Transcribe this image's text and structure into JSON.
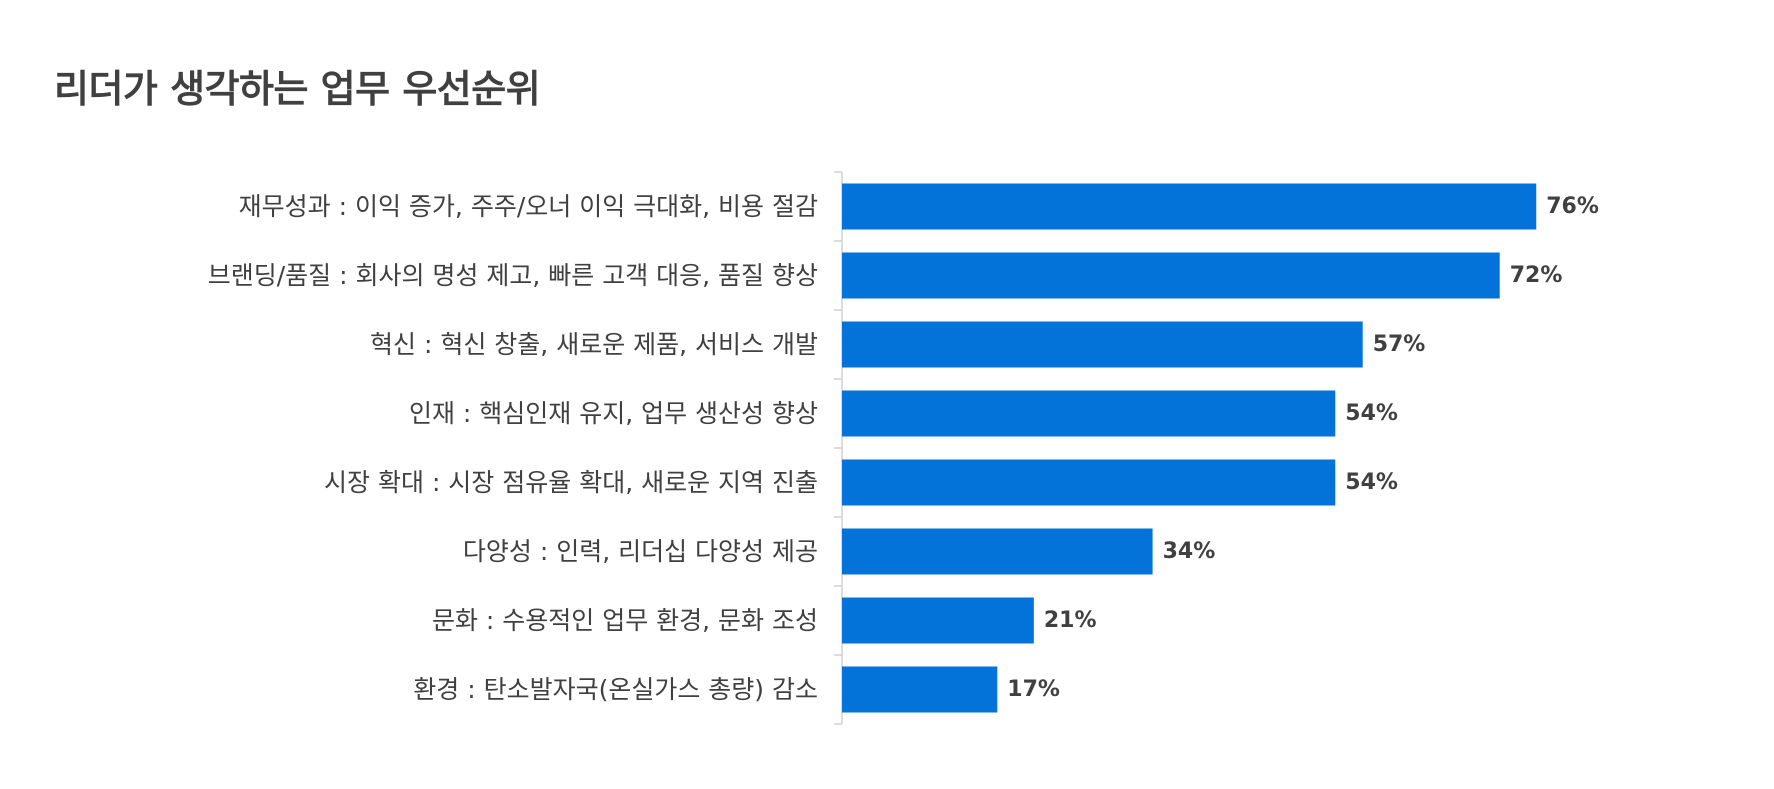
{
  "chart_data": {
    "type": "bar",
    "orientation": "horizontal",
    "title": "리더가 생각하는 업무 우선순위",
    "xlabel": "",
    "ylabel": "",
    "xlim": [
      0,
      100
    ],
    "grid": false,
    "legend": "none",
    "categories": [
      "재무성과 : 이익 증가, 주주/오너 이익 극대화, 비용 절감",
      "브랜딩/품질 : 회사의 명성 제고, 빠른 고객 대응, 품질 향상",
      "혁신 : 혁신 창출, 새로운 제품, 서비스 개발",
      "인재 : 핵심인재 유지, 업무 생산성 향상",
      "시장 확대 : 시장 점유율 확대, 새로운 지역 진출",
      "다양성 : 인력, 리더십 다양성 제공",
      "문화 : 수용적인 업무 환경, 문화 조성",
      "환경 : 탄소발자국(온실가스 총량) 감소"
    ],
    "values": [
      76,
      72,
      57,
      54,
      54,
      34,
      21,
      17
    ],
    "value_labels": [
      "76%",
      "72%",
      "57%",
      "54%",
      "54%",
      "34%",
      "21%",
      "17%"
    ],
    "bar_color": "#0373d9",
    "text_color": "#404040",
    "axis_color": "#d0d0d0"
  }
}
